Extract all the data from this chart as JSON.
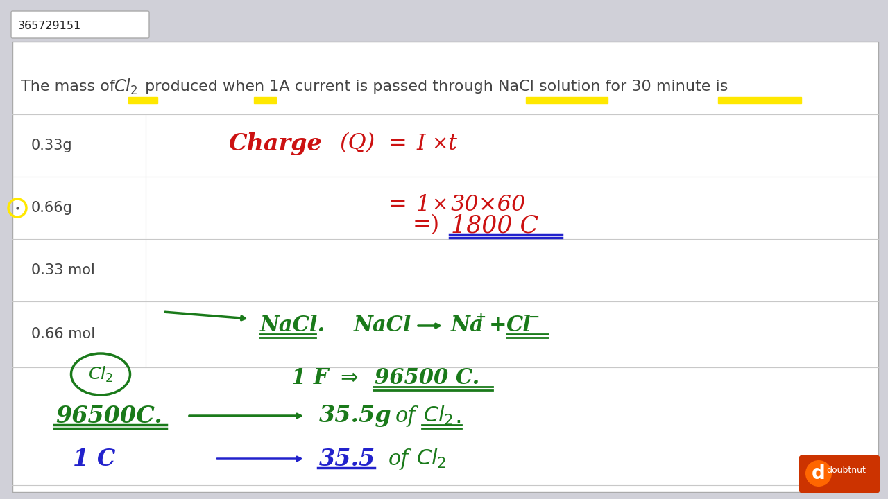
{
  "bg_color": "#d0d0d8",
  "panel_color": "#f0f0f0",
  "white": "#ffffff",
  "title_id": "365729151",
  "options": [
    "0.33g",
    "0.66g",
    "0.33 mol",
    "0.66 mol"
  ],
  "highlight_color": "#FFE800",
  "red_ink": "#cc1111",
  "green_ink": "#1a7a1a",
  "blue_ink": "#2222cc",
  "line_color": "#c8c8c8",
  "text_color": "#444444",
  "figw": 12.8,
  "figh": 7.2,
  "dpi": 100
}
